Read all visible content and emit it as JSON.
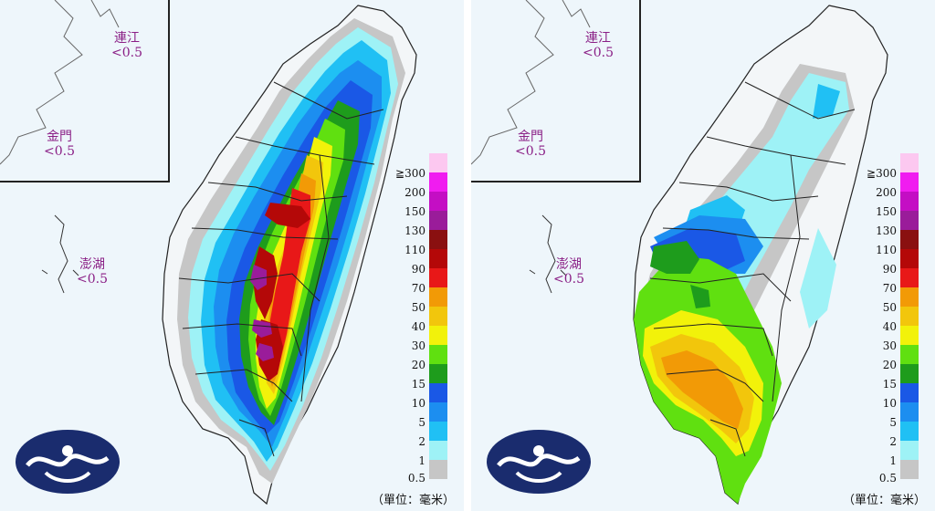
{
  "maps": [
    {
      "islands": [
        {
          "name": "連江",
          "value": "<0.5"
        },
        {
          "name": "金門",
          "value": "<0.5"
        },
        {
          "name": "澎湖",
          "value": "<0.5"
        }
      ]
    },
    {
      "islands": [
        {
          "name": "連江",
          "value": "<0.5"
        },
        {
          "name": "金門",
          "value": "<0.5"
        },
        {
          "name": "澎湖",
          "value": "<0.5"
        }
      ]
    }
  ],
  "legend": {
    "levels": [
      {
        "label": "≧300",
        "color": "#fcc8f0"
      },
      {
        "label": "200",
        "color": "#f01cf0"
      },
      {
        "label": "150",
        "color": "#c40ec4"
      },
      {
        "label": "130",
        "color": "#9a1c9a"
      },
      {
        "label": "110",
        "color": "#8a1010"
      },
      {
        "label": "90",
        "color": "#b40808"
      },
      {
        "label": "70",
        "color": "#e81818"
      },
      {
        "label": "50",
        "color": "#f29a06"
      },
      {
        "label": "40",
        "color": "#f2c60c"
      },
      {
        "label": "30",
        "color": "#f2f20a"
      },
      {
        "label": "20",
        "color": "#60e010"
      },
      {
        "label": "15",
        "color": "#1e9c1c"
      },
      {
        "label": "10",
        "color": "#1a58e6"
      },
      {
        "label": "5",
        "color": "#1c8ef0"
      },
      {
        "label": "2",
        "color": "#20c0f4"
      },
      {
        "label": "1",
        "color": "#9ef2f6"
      },
      {
        "label": "0.5",
        "color": "#c6c6c6"
      }
    ],
    "unit": "（單位：毫米）"
  },
  "colors": {
    "ocean": "#eef6fb",
    "island_label": "#8a1f86",
    "logo_bg": "#1a2c6e"
  },
  "icons": [
    "cwa-cloud-logo-icon"
  ]
}
